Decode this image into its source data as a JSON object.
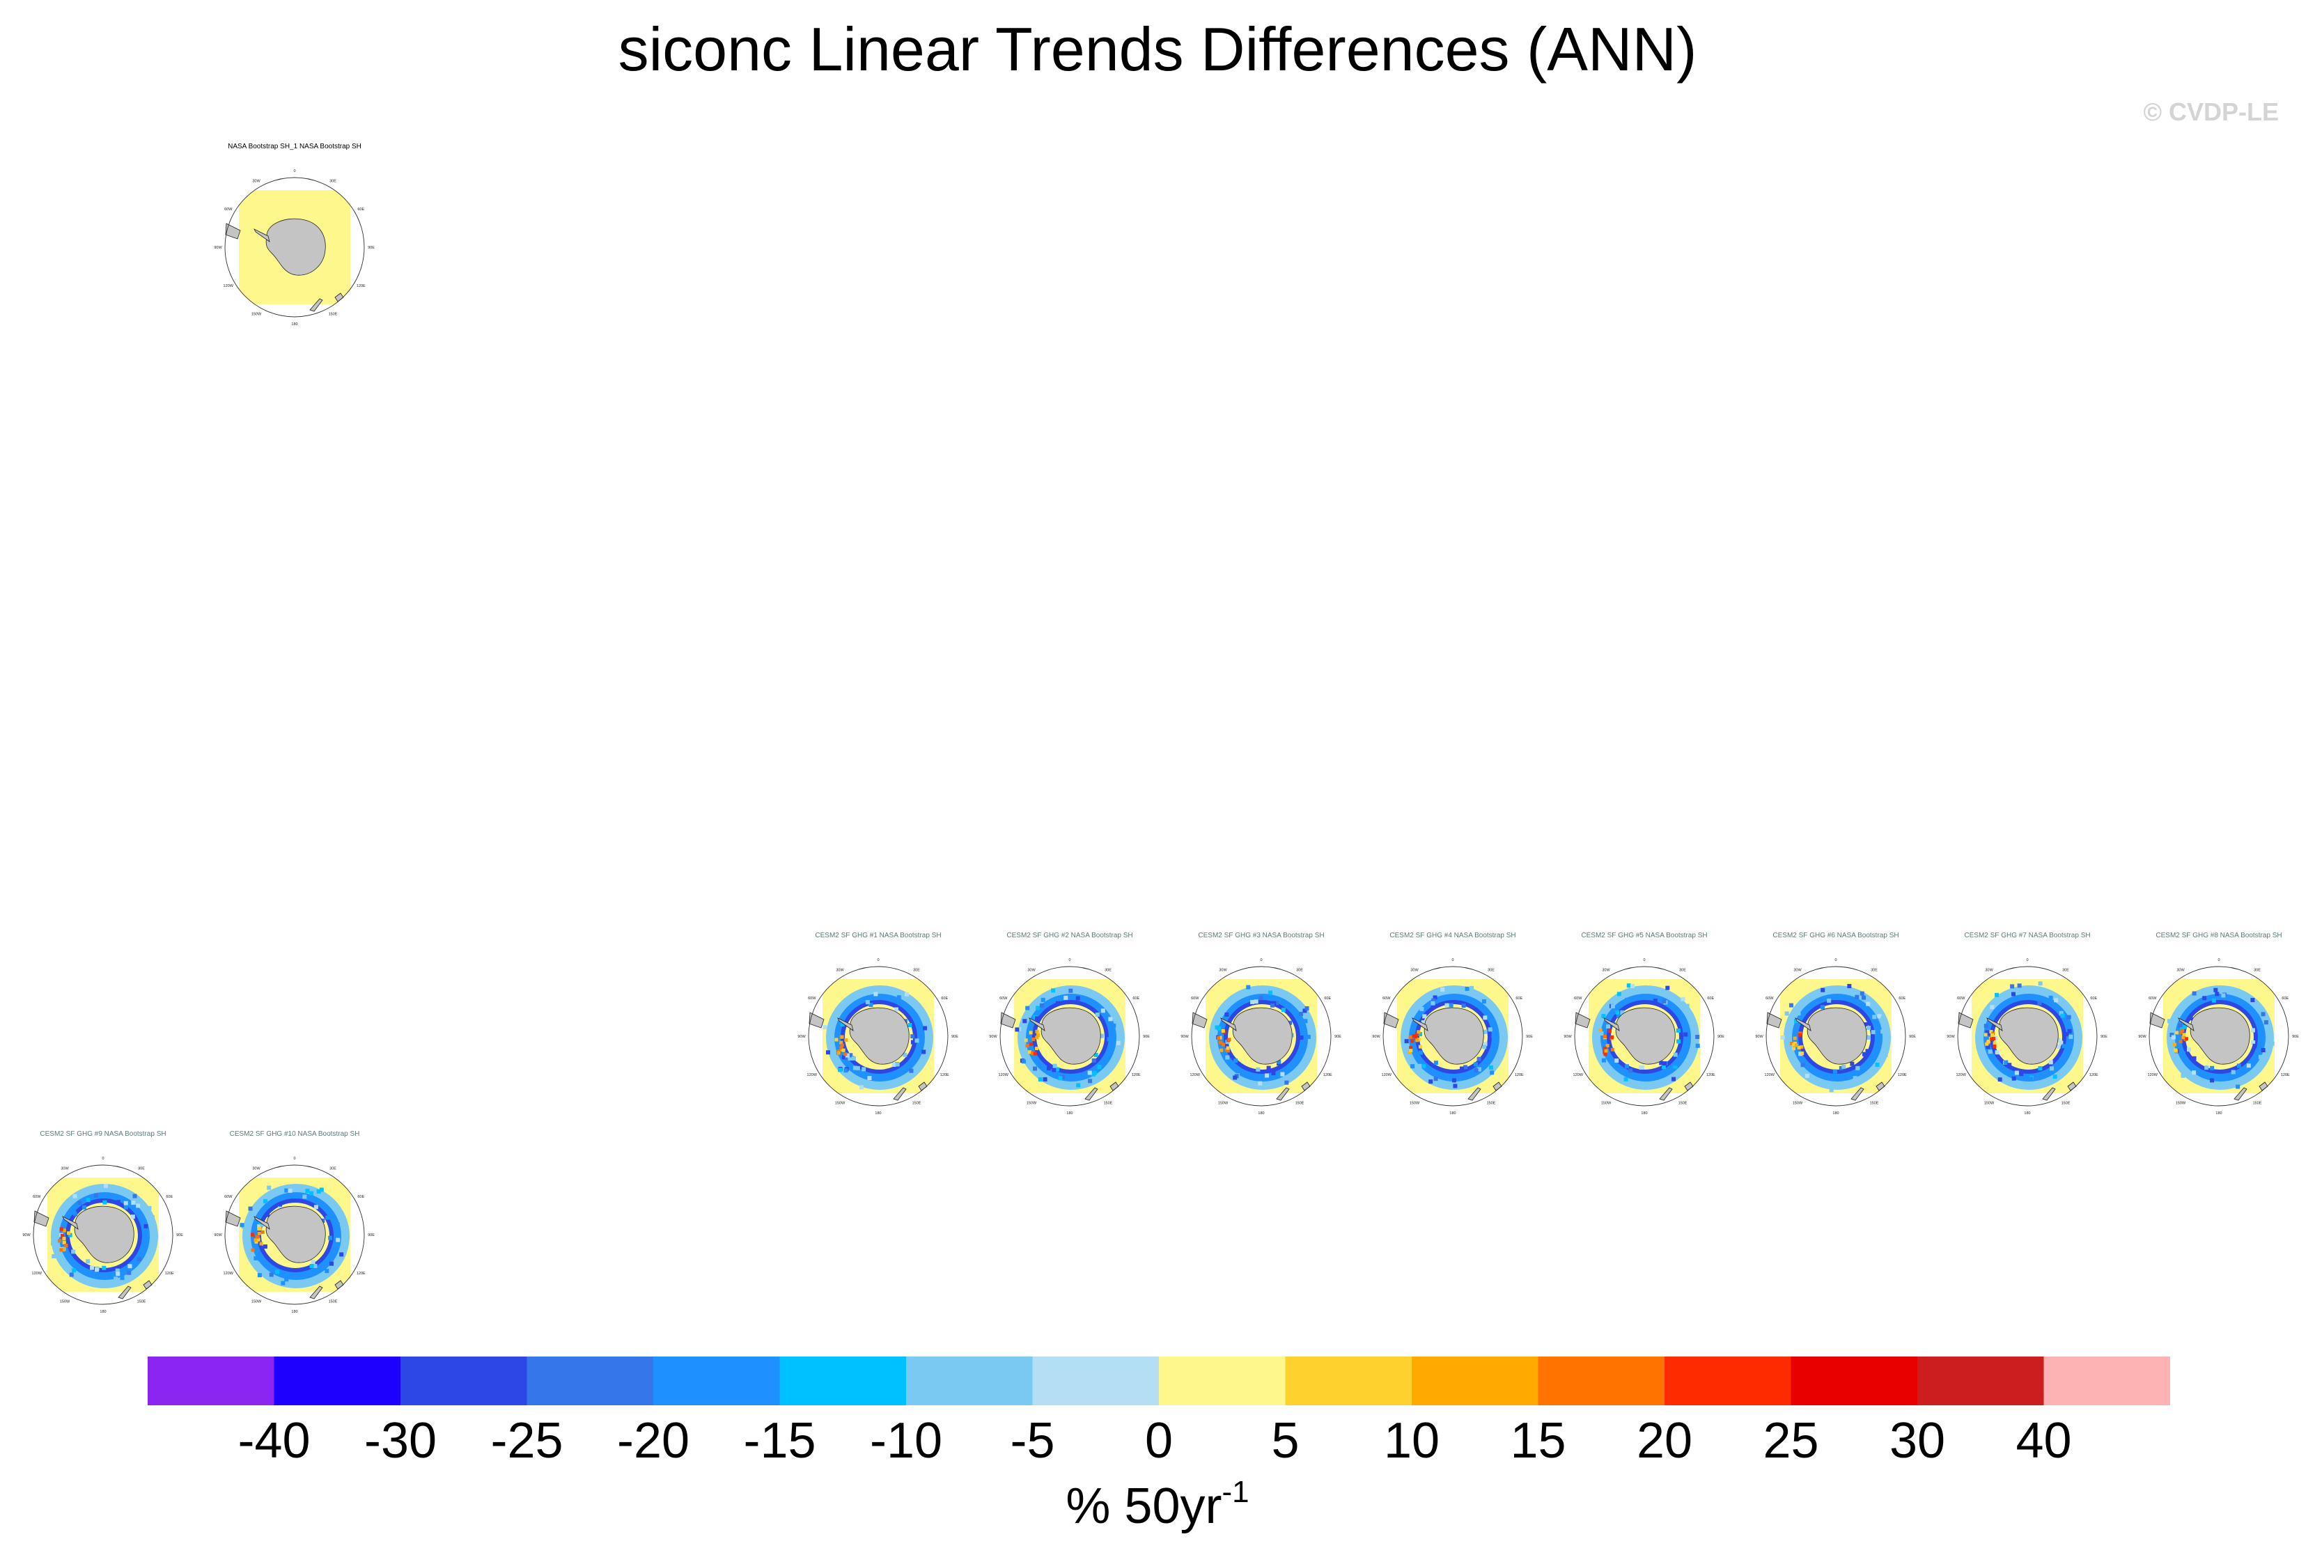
{
  "title": "siconc Linear Trends Differences (ANN)",
  "copyright": "© CVDP-LE",
  "colorbar": {
    "colors": [
      "#8a25f2",
      "#1e00ff",
      "#2d47e6",
      "#3576ea",
      "#1f90ff",
      "#00c1ff",
      "#79c9f3",
      "#b4def4",
      "#fef88c",
      "#ffd12e",
      "#ffa901",
      "#ff7400",
      "#ff2b00",
      "#e80000",
      "#cc1e1e",
      "#fdb2b4"
    ],
    "ticks": [
      "-40",
      "-30",
      "-25",
      "-20",
      "-15",
      "-10",
      "-5",
      "0",
      "5",
      "10",
      "15",
      "20",
      "25",
      "30",
      "40"
    ],
    "units_main": "% 50yr",
    "units_exp": "-1"
  },
  "chart_data": {
    "type": "heatmap",
    "title": "siconc Linear Trends Differences (ANN)",
    "colorbar_levels": [
      -40,
      -30,
      -25,
      -20,
      -15,
      -10,
      -5,
      0,
      5,
      10,
      15,
      20,
      25,
      30,
      40
    ],
    "units": "% 50yr-1",
    "lon_labels": [
      "0",
      "30E",
      "60E",
      "90E",
      "120E",
      "150E",
      "180",
      "150W",
      "120W",
      "90W",
      "60W",
      "30W"
    ],
    "panels": [
      {
        "title": "NASA Bootstrap SH_1 NASA Bootstrap SH",
        "kind": "obs"
      },
      {
        "title": "CESM2 SF GHG #1 NASA Bootstrap SH",
        "kind": "model"
      },
      {
        "title": "CESM2 SF GHG #2 NASA Bootstrap SH",
        "kind": "model"
      },
      {
        "title": "CESM2 SF GHG #3 NASA Bootstrap SH",
        "kind": "model"
      },
      {
        "title": "CESM2 SF GHG #4 NASA Bootstrap SH",
        "kind": "model"
      },
      {
        "title": "CESM2 SF GHG #5 NASA Bootstrap SH",
        "kind": "model"
      },
      {
        "title": "CESM2 SF GHG #6 NASA Bootstrap SH",
        "kind": "model"
      },
      {
        "title": "CESM2 SF GHG #7 NASA Bootstrap SH",
        "kind": "model"
      },
      {
        "title": "CESM2 SF GHG #8 NASA Bootstrap SH",
        "kind": "model"
      },
      {
        "title": "CESM2 SF GHG #9 NASA Bootstrap SH",
        "kind": "model"
      },
      {
        "title": "CESM2 SF GHG #10 NASA Bootstrap SH",
        "kind": "model"
      }
    ]
  }
}
